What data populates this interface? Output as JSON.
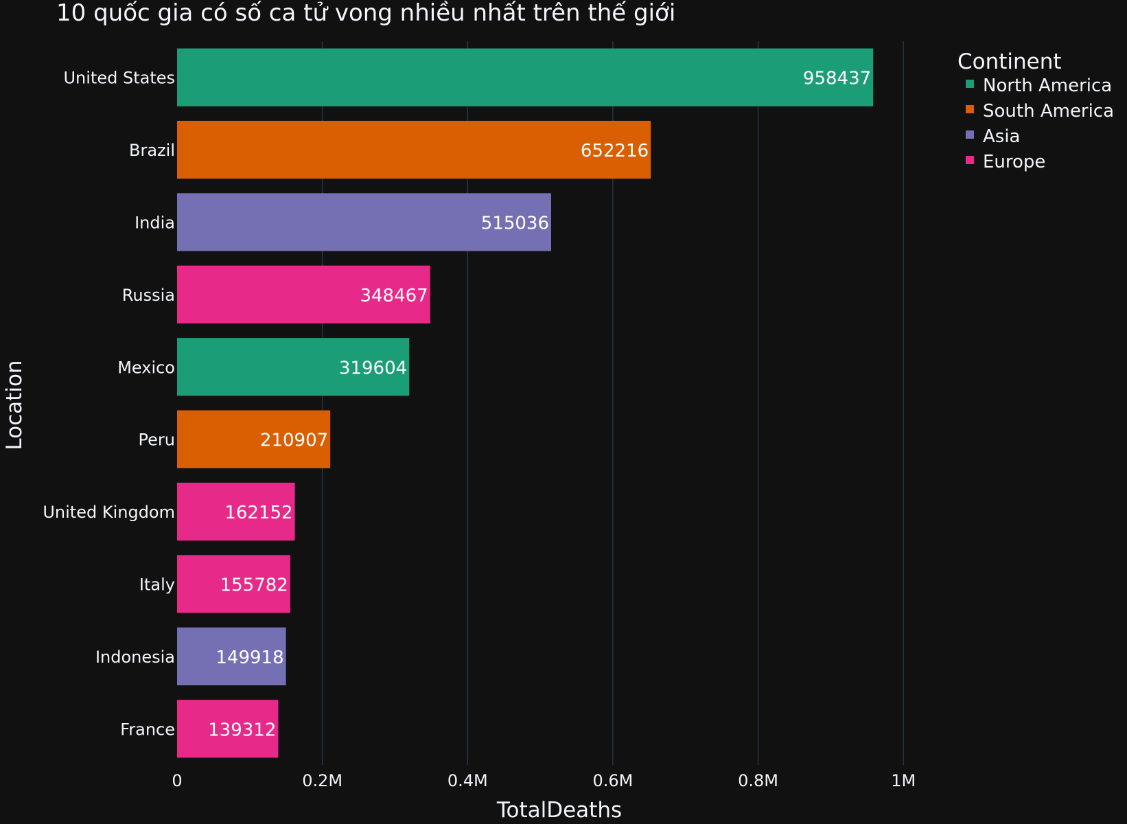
{
  "chart_data": {
    "type": "bar",
    "orientation": "horizontal",
    "title": "10 quốc gia có số ca tử vong nhiều nhất trên thế giới",
    "xlabel": "TotalDeaths",
    "ylabel": "Location",
    "xlim": [
      0,
      1100000
    ],
    "x_ticks": [
      {
        "value": 0,
        "label": "0"
      },
      {
        "value": 200000,
        "label": "0.2M"
      },
      {
        "value": 400000,
        "label": "0.4M"
      },
      {
        "value": 600000,
        "label": "0.6M"
      },
      {
        "value": 800000,
        "label": "0.8M"
      },
      {
        "value": 1000000,
        "label": "1M"
      }
    ],
    "grid": true,
    "legend": {
      "title": "Continent",
      "placement": "top-right",
      "items": [
        {
          "name": "North America",
          "color": "#1b9e77"
        },
        {
          "name": "South America",
          "color": "#d95f02"
        },
        {
          "name": "Asia",
          "color": "#7570b3"
        },
        {
          "name": "Europe",
          "color": "#e7298a"
        }
      ]
    },
    "categories": [
      "United States",
      "Brazil",
      "India",
      "Russia",
      "Mexico",
      "Peru",
      "United Kingdom",
      "Italy",
      "Indonesia",
      "France"
    ],
    "values": [
      958437,
      652216,
      515036,
      348467,
      319604,
      210907,
      162152,
      155782,
      149918,
      139312
    ],
    "data_labels": [
      "958437",
      "652216",
      "515036",
      "348467",
      "319604",
      "210907",
      "162152",
      "155782",
      "149918",
      "139312"
    ],
    "bar_continents": [
      "North America",
      "South America",
      "Asia",
      "Europe",
      "North America",
      "South America",
      "Europe",
      "Europe",
      "Asia",
      "Europe"
    ]
  }
}
